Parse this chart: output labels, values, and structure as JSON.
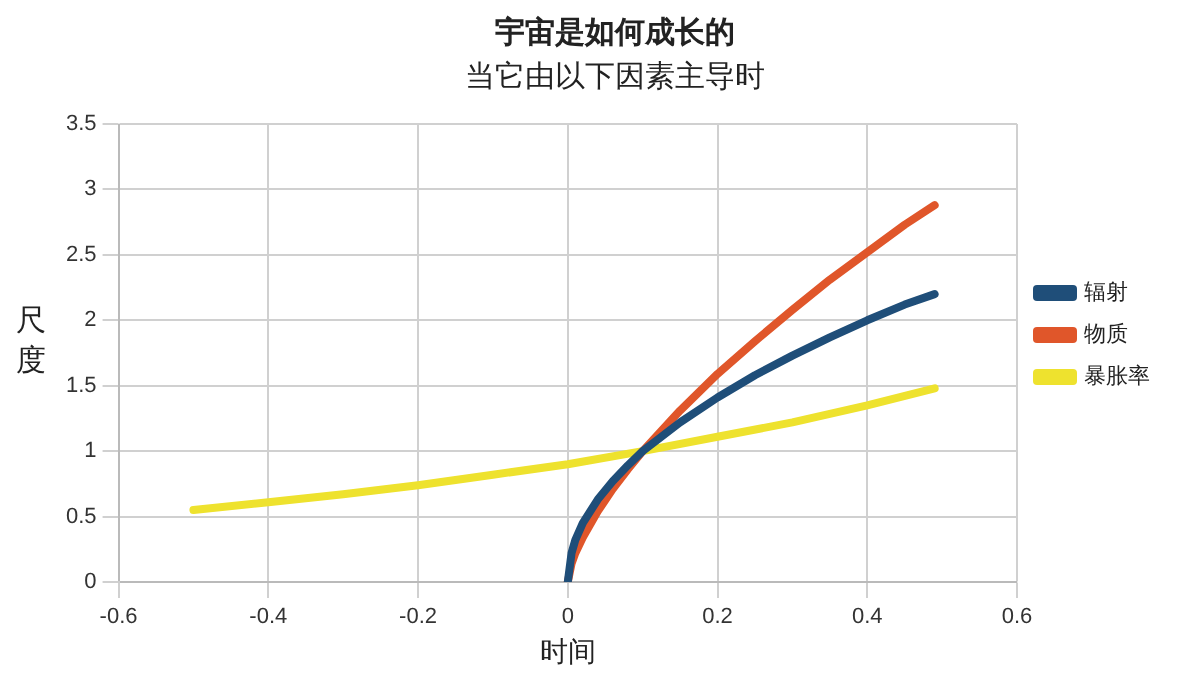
{
  "chart_data": {
    "type": "line",
    "title": "宇宙是如何成长的",
    "subtitle": "当它由以下因素主导时",
    "xlabel": "时间",
    "ylabel": "尺度",
    "xlim": [
      -0.6,
      0.6
    ],
    "xticks": [
      -0.6,
      -0.4,
      -0.2,
      0,
      0.2,
      0.4,
      0.6
    ],
    "ylim": [
      0,
      3.5
    ],
    "yticks": [
      0,
      0.5,
      1,
      1.5,
      2,
      2.5,
      3,
      3.5
    ],
    "grid": true,
    "legend": "right",
    "marker": "none",
    "line_style": "solid",
    "series": [
      {
        "name": "辐射",
        "color": "#1f4e79",
        "x": [
          0,
          0.005,
          0.01,
          0.02,
          0.04,
          0.06,
          0.08,
          0.1,
          0.15,
          0.2,
          0.25,
          0.3,
          0.35,
          0.4,
          0.45,
          0.49
        ],
        "values": [
          0,
          0.22,
          0.32,
          0.45,
          0.63,
          0.77,
          0.89,
          1,
          1.22,
          1.41,
          1.58,
          1.73,
          1.87,
          2.0,
          2.12,
          2.2
        ]
      },
      {
        "name": "物质",
        "color": "#e0562a",
        "x": [
          0,
          0.005,
          0.01,
          0.02,
          0.04,
          0.06,
          0.08,
          0.1,
          0.15,
          0.2,
          0.25,
          0.3,
          0.35,
          0.4,
          0.45,
          0.49
        ],
        "values": [
          0,
          0.14,
          0.22,
          0.34,
          0.54,
          0.71,
          0.86,
          1,
          1.31,
          1.59,
          1.84,
          2.08,
          2.31,
          2.52,
          2.73,
          2.88
        ]
      },
      {
        "name": "暴胀率",
        "color": "#eee22e",
        "x": [
          -0.5,
          -0.4,
          -0.3,
          -0.2,
          -0.1,
          0,
          0.1,
          0.2,
          0.3,
          0.4,
          0.49
        ],
        "values": [
          0.55,
          0.61,
          0.67,
          0.74,
          0.82,
          0.9,
          1,
          1.11,
          1.22,
          1.35,
          1.48
        ]
      }
    ]
  }
}
